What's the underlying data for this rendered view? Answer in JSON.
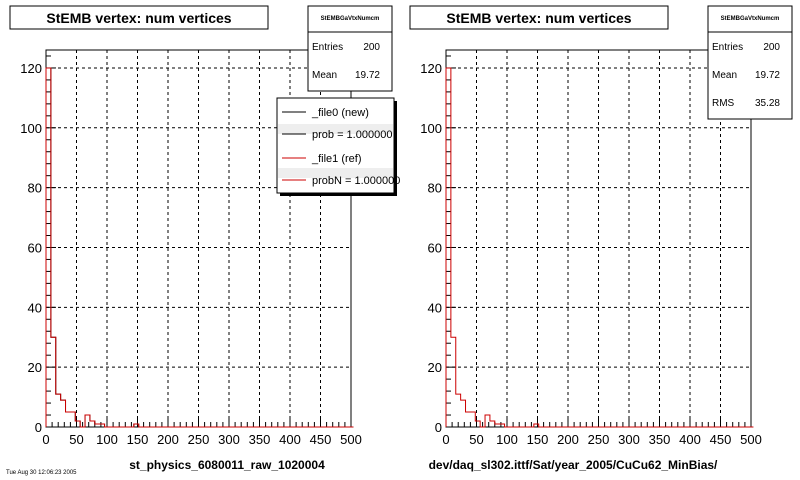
{
  "chart_data": [
    {
      "type": "bar",
      "title": "StEMB  vertex: num vertices",
      "xlabel": "st_physics_6080011_raw_1020004",
      "xlim": [
        0,
        500
      ],
      "ylim": [
        0,
        126
      ],
      "xticks": [
        "0",
        "50",
        "100",
        "150",
        "200",
        "250",
        "300",
        "350",
        "400",
        "450",
        "500"
      ],
      "yticks": [
        "0",
        "20",
        "40",
        "60",
        "80",
        "100",
        "120"
      ],
      "grid": true,
      "bin_width": 8,
      "series": [
        {
          "name": "_file0 (new)",
          "color": "#000000",
          "values": [
            120,
            30,
            11,
            9,
            5,
            5,
            2,
            0,
            4,
            2,
            1,
            1,
            0,
            0,
            0,
            0,
            0,
            0,
            1,
            0,
            0,
            0,
            0,
            0,
            0,
            0,
            0,
            0,
            0,
            0,
            0,
            0,
            0,
            0,
            0,
            0,
            0,
            0,
            0,
            0,
            0,
            0,
            0,
            0,
            0,
            0,
            0,
            0,
            0,
            0,
            0,
            0,
            0,
            0,
            0,
            0,
            0,
            0,
            0,
            0,
            0,
            0,
            0
          ]
        },
        {
          "name": "_file1 (ref)",
          "color": "#cc0000",
          "values": [
            120,
            30,
            11,
            9,
            5,
            5,
            2,
            0,
            4,
            2,
            1,
            1,
            0,
            0,
            0,
            0,
            0,
            0,
            1,
            0,
            0,
            0,
            0,
            0,
            0,
            0,
            0,
            0,
            0,
            0,
            0,
            0,
            0,
            0,
            0,
            0,
            0,
            0,
            0,
            0,
            0,
            0,
            0,
            0,
            0,
            0,
            0,
            0,
            0,
            0,
            0,
            0,
            0,
            0,
            0,
            0,
            0,
            0,
            0,
            0,
            0,
            0,
            0
          ]
        }
      ],
      "stats": {
        "name": "StEMBGaVtxNumcm",
        "rows": [
          {
            "label": "Entries",
            "value": "200"
          },
          {
            "label": "Mean",
            "value": "19.72"
          }
        ]
      },
      "legend": {
        "position": "top-right",
        "entries": [
          "_file0 (new)",
          "prob = 1.000000",
          "_file1 (ref)",
          "probN = 1.000000"
        ]
      }
    },
    {
      "type": "bar",
      "title": "StEMB  vertex: num vertices",
      "xlabel": "dev/daq_sl302.ittf/Sat/year_2005/CuCu62_MinBias/",
      "xlim": [
        0,
        500
      ],
      "ylim": [
        0,
        126
      ],
      "xticks": [
        "0",
        "50",
        "100",
        "150",
        "200",
        "250",
        "300",
        "350",
        "400",
        "450",
        "500"
      ],
      "yticks": [
        "0",
        "20",
        "40",
        "60",
        "80",
        "100",
        "120"
      ],
      "grid": true,
      "bin_width": 8,
      "series": [
        {
          "name": "",
          "color": "#cc0000",
          "values": [
            120,
            30,
            11,
            9,
            5,
            5,
            2,
            0,
            4,
            2,
            1,
            1,
            0,
            0,
            0,
            0,
            0,
            0,
            1,
            0,
            0,
            0,
            0,
            0,
            0,
            0,
            0,
            0,
            0,
            0,
            0,
            0,
            0,
            0,
            0,
            0,
            0,
            0,
            0,
            0,
            0,
            0,
            0,
            0,
            0,
            0,
            0,
            0,
            0,
            0,
            0,
            0,
            0,
            0,
            0,
            0,
            0,
            0,
            0,
            0,
            0,
            0,
            0
          ]
        }
      ],
      "stats": {
        "name": "StEMBGaVtxNumcm",
        "rows": [
          {
            "label": "Entries",
            "value": "200"
          },
          {
            "label": "Mean",
            "value": "19.72"
          },
          {
            "label": "RMS",
            "value": "35.28"
          }
        ]
      }
    }
  ],
  "footer": {
    "text": "Tue Aug 30 12:06:23 2005"
  }
}
